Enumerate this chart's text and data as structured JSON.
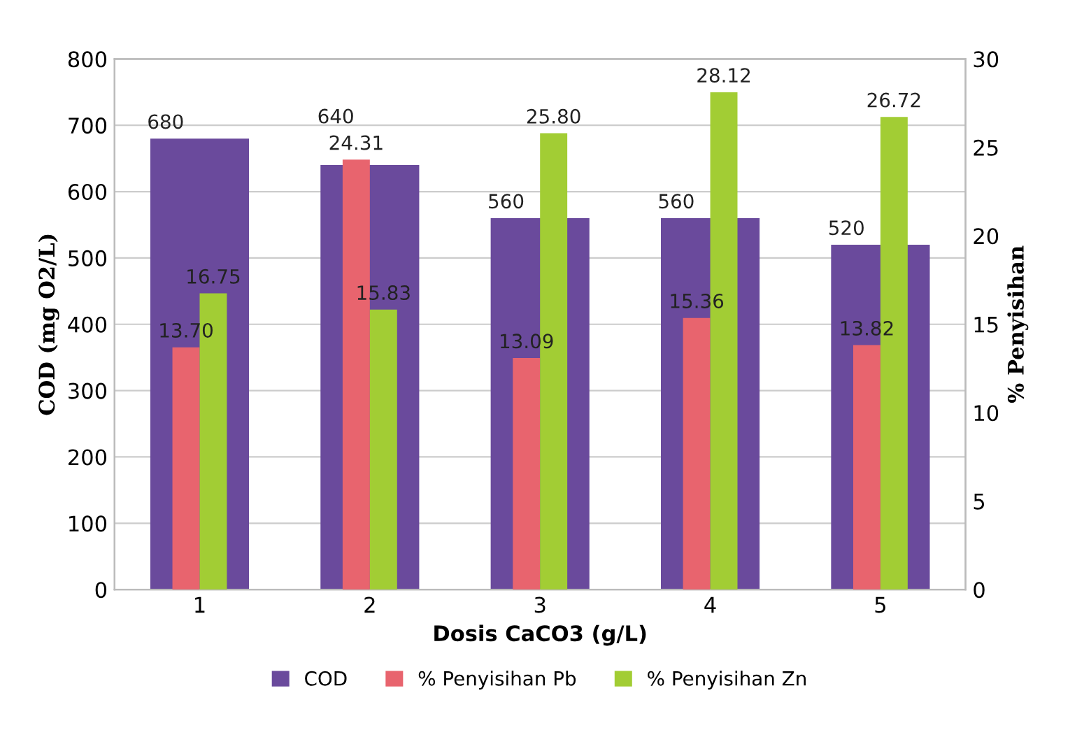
{
  "chart_data": {
    "type": "bar",
    "xlabel": "Dosis CaCO3 (g/L)",
    "ylabel": "COD (mg O2/L)",
    "y2label": "% Penyisihan",
    "categories": [
      "1",
      "2",
      "3",
      "4",
      "5"
    ],
    "series": [
      {
        "name": "COD",
        "color": "#6a4a9c",
        "values": [
          680,
          640,
          560,
          560,
          520
        ],
        "value_labels": [
          "680",
          "640",
          "560",
          "560",
          "520"
        ]
      },
      {
        "name": "% Penyisihan Pb",
        "color": "#e8646e",
        "values": [
          13.7,
          24.31,
          13.09,
          15.36,
          13.82
        ],
        "value_labels": [
          "13.70",
          "24.31",
          "13.09",
          "15.36",
          "13.82"
        ],
        "axis": "y2"
      },
      {
        "name": "% Penyisihan Zn",
        "color": "#a2cd34",
        "values": [
          16.75,
          15.83,
          25.8,
          28.12,
          26.72
        ],
        "value_labels": [
          "16.75",
          "15.83",
          "25.80",
          "28.12",
          "26.72"
        ],
        "axis": "y2"
      }
    ],
    "ylim": [
      0,
      800
    ],
    "yticks": [
      0,
      100,
      200,
      300,
      400,
      500,
      600,
      700,
      800
    ],
    "y2lim": [
      0,
      30
    ],
    "y2ticks": [
      0,
      5,
      10,
      15,
      20,
      25,
      30
    ],
    "grid": "y",
    "legend": "bottom"
  }
}
